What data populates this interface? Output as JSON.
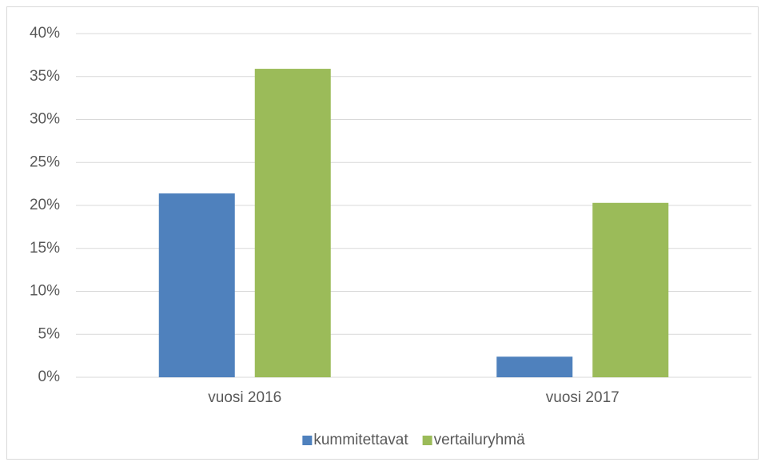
{
  "chart_data": {
    "type": "bar",
    "categories": [
      "vuosi 2016",
      "vuosi 2017"
    ],
    "series": [
      {
        "name": "kummitettavat",
        "color": "#4f81bd",
        "values": [
          21.4,
          2.4
        ]
      },
      {
        "name": "vertailuryhmä",
        "color": "#9bbb59",
        "values": [
          35.9,
          20.3
        ]
      }
    ],
    "ylim": [
      0,
      40
    ],
    "yticks": [
      {
        "value": 0,
        "label": "0%"
      },
      {
        "value": 5,
        "label": "5%"
      },
      {
        "value": 10,
        "label": "10%"
      },
      {
        "value": 15,
        "label": "15%"
      },
      {
        "value": 20,
        "label": "20%"
      },
      {
        "value": 25,
        "label": "25%"
      },
      {
        "value": 30,
        "label": "30%"
      },
      {
        "value": 35,
        "label": "35%"
      },
      {
        "value": 40,
        "label": "40%"
      }
    ],
    "grid": true,
    "legend": "bottom"
  }
}
